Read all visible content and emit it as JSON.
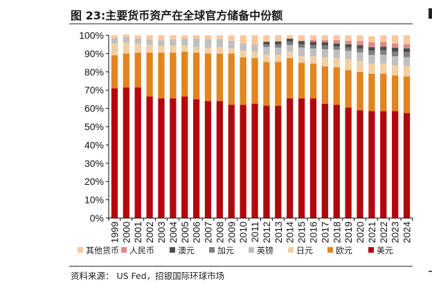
{
  "header": {
    "figure_no": "图 23:",
    "title": "主要货币资产在全球官方储备中份额"
  },
  "source": "资料来源： US Fed，招银国际环球市场",
  "colors": {
    "美元": "#b2080d",
    "欧元": "#e2841f",
    "日元": "#f2cfa3",
    "英镑": "#bfbfbf",
    "加元": "#7f7f7f",
    "澳元": "#4d4d4d",
    "人民币": "#de8a8a",
    "其他货币": "#f9c79e"
  },
  "chart_data": {
    "type": "bar",
    "stacked": true,
    "categories": [
      "1999",
      "2000",
      "2001",
      "2002",
      "2003",
      "2004",
      "2005",
      "2006",
      "2007",
      "2008",
      "2009",
      "2010",
      "2011",
      "2012",
      "2013",
      "2014",
      "2015",
      "2016",
      "2017",
      "2018",
      "2019",
      "2020",
      "2021",
      "2022",
      "2023",
      "2024"
    ],
    "ylim": [
      0,
      100
    ],
    "yticks": [
      0,
      10,
      20,
      30,
      40,
      50,
      60,
      70,
      80,
      90,
      100
    ],
    "ytick_labels": [
      "0%",
      "10%",
      "20%",
      "30%",
      "40%",
      "50%",
      "60%",
      "70%",
      "80%",
      "90%",
      "100%"
    ],
    "legend_position": "bottom",
    "legend_order": [
      "其他货币",
      "人民币",
      "澳元",
      "加元",
      "英镑",
      "日元",
      "欧元",
      "美元"
    ],
    "series": [
      {
        "name": "美元",
        "values": [
          71,
          71.5,
          71.5,
          66.5,
          65.5,
          65.5,
          66.5,
          65,
          64,
          64,
          62,
          62,
          62.5,
          61.5,
          61.5,
          65.5,
          65.5,
          65.5,
          62.5,
          62,
          60.5,
          59,
          58.5,
          58.5,
          58.5,
          57.5
        ]
      },
      {
        "name": "欧元",
        "values": [
          18,
          18.5,
          19,
          24,
          25,
          25,
          24.5,
          25.5,
          26,
          26,
          28,
          26,
          25,
          24,
          24,
          22,
          19.5,
          19,
          20.5,
          20.5,
          20.5,
          21,
          20.5,
          20.5,
          19.5,
          20
        ]
      },
      {
        "name": "日元",
        "values": [
          6.4,
          6.1,
          5.0,
          4.4,
          3.9,
          3.8,
          3.6,
          3.1,
          3.2,
          3.5,
          2.9,
          3.7,
          3.6,
          4.1,
          3.8,
          3.5,
          3.6,
          4.0,
          4.9,
          5.2,
          5.9,
          6.0,
          5.5,
          5.5,
          5.7,
          5.8
        ]
      },
      {
        "name": "英镑",
        "values": [
          2.9,
          2.8,
          2.7,
          2.9,
          2.8,
          3.4,
          3.6,
          4.5,
          4.8,
          4.2,
          4.2,
          3.9,
          3.8,
          4.0,
          4.0,
          3.7,
          4.7,
          4.3,
          4.5,
          4.4,
          4.6,
          4.7,
          4.8,
          4.9,
          4.8,
          4.7
        ]
      },
      {
        "name": "加元",
        "values": [
          0,
          0,
          0,
          0,
          0,
          0,
          0,
          0,
          0,
          0,
          0,
          0,
          0,
          1.4,
          1.8,
          1.9,
          1.8,
          1.9,
          2.0,
          1.8,
          1.9,
          2.1,
          2.4,
          2.4,
          2.6,
          2.8
        ]
      },
      {
        "name": "澳元",
        "values": [
          0,
          0,
          0,
          0,
          0,
          0,
          0,
          0,
          0,
          0,
          0,
          0,
          0,
          1.5,
          1.6,
          1.6,
          1.8,
          1.7,
          1.8,
          1.6,
          1.7,
          1.8,
          1.8,
          2.0,
          2.1,
          2.1
        ]
      },
      {
        "name": "人民币",
        "values": [
          0,
          0,
          0,
          0,
          0,
          0,
          0,
          0,
          0,
          0,
          0,
          0,
          0,
          0,
          0,
          0,
          0,
          1.1,
          1.2,
          1.9,
          1.9,
          2.3,
          2.8,
          2.6,
          2.3,
          2.2
        ]
      },
      {
        "name": "其他货币",
        "values": [
          1.7,
          1.6,
          1.8,
          2.2,
          2.8,
          2.3,
          1.8,
          1.9,
          2.0,
          2.3,
          2.9,
          4.4,
          5.1,
          3.5,
          3.3,
          1.8,
          3.1,
          2.5,
          2.6,
          2.6,
          3.0,
          3.1,
          3.2,
          3.6,
          4.5,
          4.9
        ]
      }
    ]
  }
}
